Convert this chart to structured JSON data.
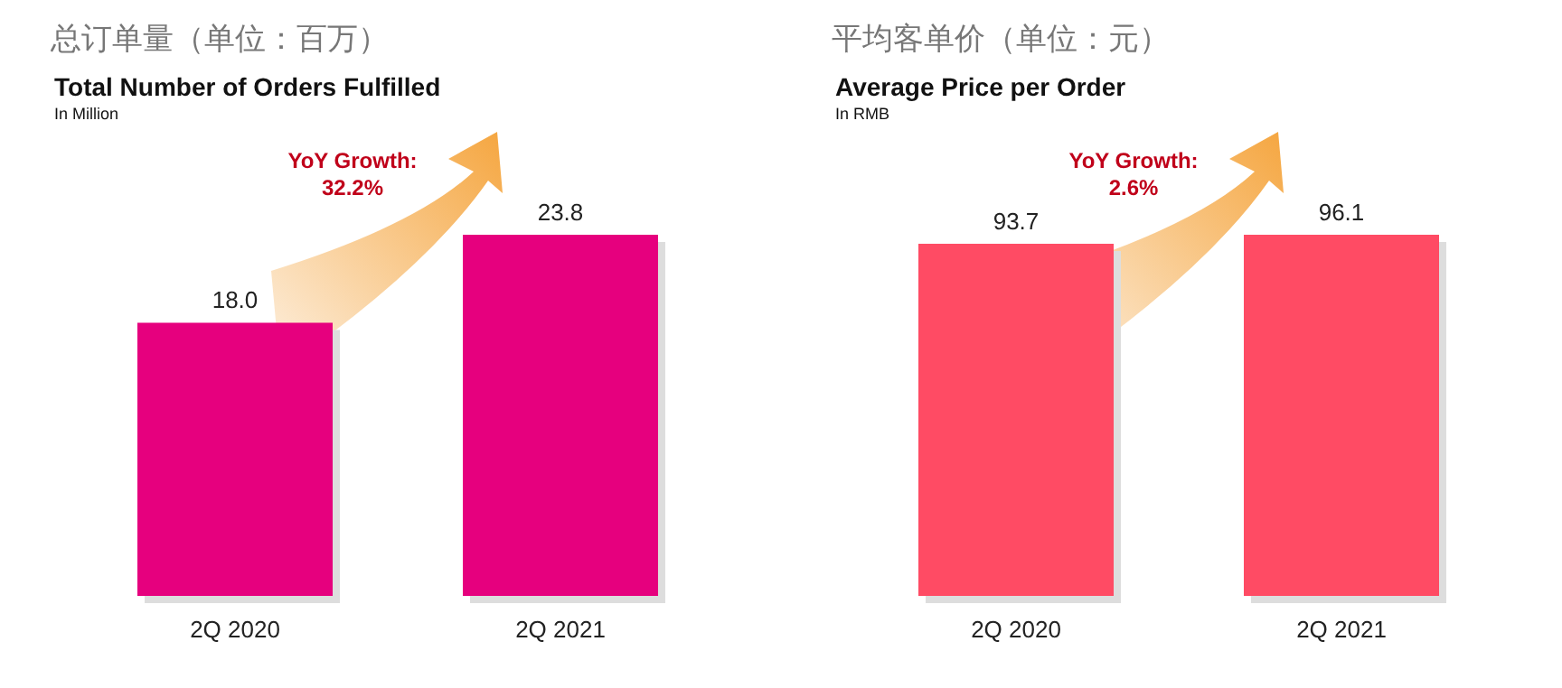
{
  "chart_data": [
    {
      "type": "bar",
      "title": "总订单量（单位：百万）",
      "subtitle": "Total Number of Orders Fulfilled",
      "ylabel": "In Million",
      "annotations": [
        "YoY Growth:",
        "32.2%"
      ],
      "categories": [
        "2Q 2020",
        "2Q 2021"
      ],
      "values": [
        18.0,
        23.8
      ],
      "value_labels": [
        "18.0",
        "23.8"
      ],
      "color": "#e6007e"
    },
    {
      "type": "bar",
      "title": "平均客单价（单位：元）",
      "subtitle": "Average Price per Order",
      "ylabel": "In RMB",
      "annotations": [
        "YoY Growth:",
        "2.6%"
      ],
      "categories": [
        "2Q 2020",
        "2Q 2021"
      ],
      "values": [
        93.7,
        96.1
      ],
      "value_labels": [
        "93.7",
        "96.1"
      ],
      "color": "#ff4b64"
    }
  ]
}
